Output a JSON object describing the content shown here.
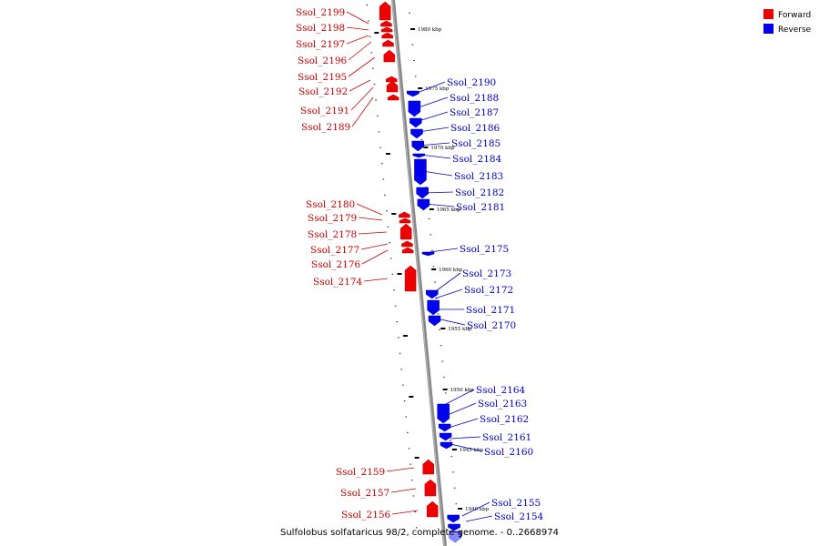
{
  "caption": "Sulfolobus solfataricus 98/2, complete genome. - 0..2668974",
  "legend": [
    {
      "label": "Forward",
      "color": "#ee0000"
    },
    {
      "label": "Reverse",
      "color": "#0000ee"
    }
  ],
  "ticks": [
    "1980 kbp",
    "1975 kbp",
    "1970 kbp",
    "1965 kbp",
    "1960 kbp",
    "1955 kbp",
    "1950 kbp",
    "1945 kbp",
    "1940 kbp"
  ],
  "genes_forward": [
    "Ssol_2199",
    "Ssol_2198",
    "Ssol_2197",
    "Ssol_2196",
    "Ssol_2195",
    "Ssol_2192",
    "Ssol_2191",
    "Ssol_2189",
    "Ssol_2180",
    "Ssol_2179",
    "Ssol_2178",
    "Ssol_2177",
    "Ssol_2176",
    "Ssol_2174",
    "Ssol_2159",
    "Ssol_2157",
    "Ssol_2156"
  ],
  "genes_reverse": [
    "Ssol_2190",
    "Ssol_2188",
    "Ssol_2187",
    "Ssol_2186",
    "Ssol_2185",
    "Ssol_2184",
    "Ssol_2183",
    "Ssol_2182",
    "Ssol_2181",
    "Ssol_2175",
    "Ssol_2173",
    "Ssol_2172",
    "Ssol_2171",
    "Ssol_2170",
    "Ssol_2164",
    "Ssol_2163",
    "Ssol_2162",
    "Ssol_2161",
    "Ssol_2160",
    "Ssol_2155",
    "Ssol_2154"
  ]
}
